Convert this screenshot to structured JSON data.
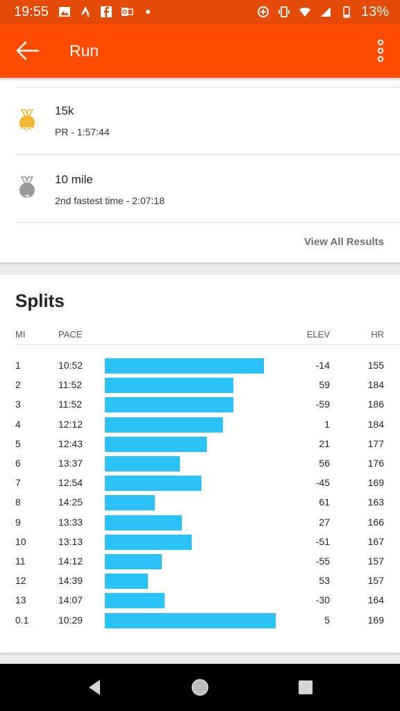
{
  "status_bar": {
    "time": "19:55",
    "battery": "13%",
    "icons_left": [
      "image-icon",
      "strava-icon",
      "facebook-icon",
      "outlook-icon",
      "dot-icon"
    ],
    "icons_right": [
      "data-saver-icon",
      "vibrate-icon",
      "wifi-icon",
      "signal-icon",
      "battery-icon"
    ]
  },
  "app_bar": {
    "title": "Run"
  },
  "results": {
    "items": [
      {
        "title": "15k",
        "subtitle": "PR - 1:57:44",
        "medal": "PR",
        "medal_color": "#f5b731"
      },
      {
        "title": "10 mile",
        "subtitle": "2nd fastest time - 2:07:18",
        "medal": "2",
        "medal_color": "#9a9a9a"
      }
    ],
    "view_all_label": "View All Results"
  },
  "splits": {
    "title": "Splits",
    "headers": {
      "mi": "MI",
      "pace": "PACE",
      "elev": "ELEV",
      "hr": "HR"
    },
    "bar_color": "#2bc2f7",
    "rows": [
      {
        "mi": "1",
        "pace": "10:52",
        "elev": "-14",
        "hr": "155"
      },
      {
        "mi": "2",
        "pace": "11:52",
        "elev": "59",
        "hr": "184"
      },
      {
        "mi": "3",
        "pace": "11:52",
        "elev": "-59",
        "hr": "186"
      },
      {
        "mi": "4",
        "pace": "12:12",
        "elev": "1",
        "hr": "184"
      },
      {
        "mi": "5",
        "pace": "12:43",
        "elev": "21",
        "hr": "177"
      },
      {
        "mi": "6",
        "pace": "13:37",
        "elev": "56",
        "hr": "176"
      },
      {
        "mi": "7",
        "pace": "12:54",
        "elev": "-45",
        "hr": "169"
      },
      {
        "mi": "8",
        "pace": "14:25",
        "elev": "61",
        "hr": "163"
      },
      {
        "mi": "9",
        "pace": "13:33",
        "elev": "27",
        "hr": "166"
      },
      {
        "mi": "10",
        "pace": "13:13",
        "elev": "-51",
        "hr": "167"
      },
      {
        "mi": "11",
        "pace": "14:12",
        "elev": "-55",
        "hr": "157"
      },
      {
        "mi": "12",
        "pace": "14:39",
        "elev": "53",
        "hr": "157"
      },
      {
        "mi": "13",
        "pace": "14:07",
        "elev": "-30",
        "hr": "164"
      },
      {
        "mi": "0.1",
        "pace": "10:29",
        "elev": "5",
        "hr": "169"
      }
    ]
  },
  "nav_bar": {
    "buttons": [
      "back-triangle-icon",
      "home-circle-icon",
      "recents-square-icon"
    ]
  },
  "colors": {
    "brand": "#fc4c02",
    "status_bar": "#e54a07"
  }
}
